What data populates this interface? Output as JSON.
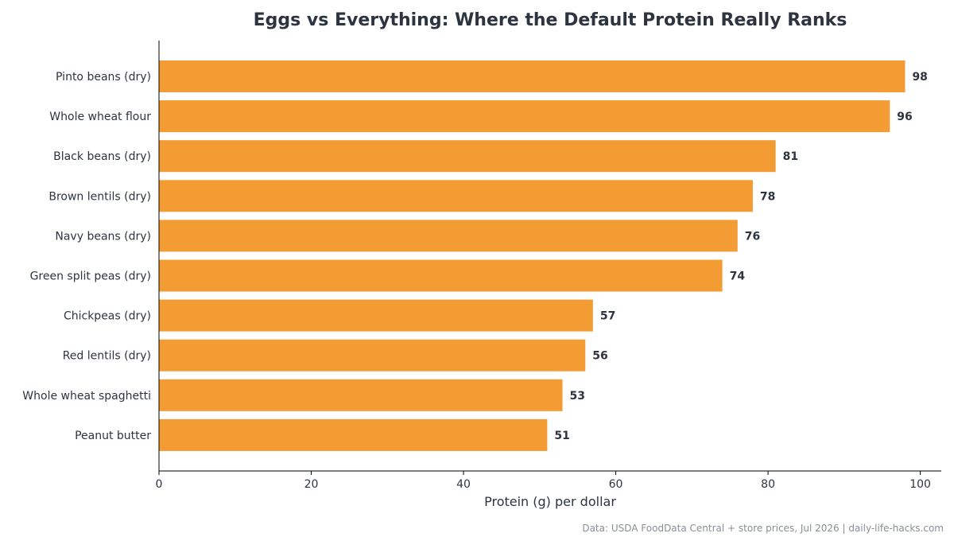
{
  "chart_data": {
    "type": "bar",
    "orientation": "horizontal",
    "title": "Eggs vs Everything: Where the Default Protein Really Ranks",
    "xlabel": "Protein (g) per dollar",
    "ylabel": "",
    "xlim": [
      0,
      100
    ],
    "xticks": [
      0,
      20,
      40,
      60,
      80,
      100
    ],
    "grid": false,
    "categories": [
      "Pinto beans (dry)",
      "Whole wheat flour",
      "Black beans (dry)",
      "Brown lentils (dry)",
      "Navy beans (dry)",
      "Green split peas (dry)",
      "Chickpeas (dry)",
      "Red lentils (dry)",
      "Whole wheat spaghetti",
      "Peanut butter"
    ],
    "values": [
      98,
      96,
      81,
      78,
      76,
      74,
      57,
      56,
      53,
      51
    ],
    "bar_color": "#f29c33",
    "source": "Data: USDA FoodData Central + store prices, Jul 2026 | daily-life-hacks.com"
  }
}
